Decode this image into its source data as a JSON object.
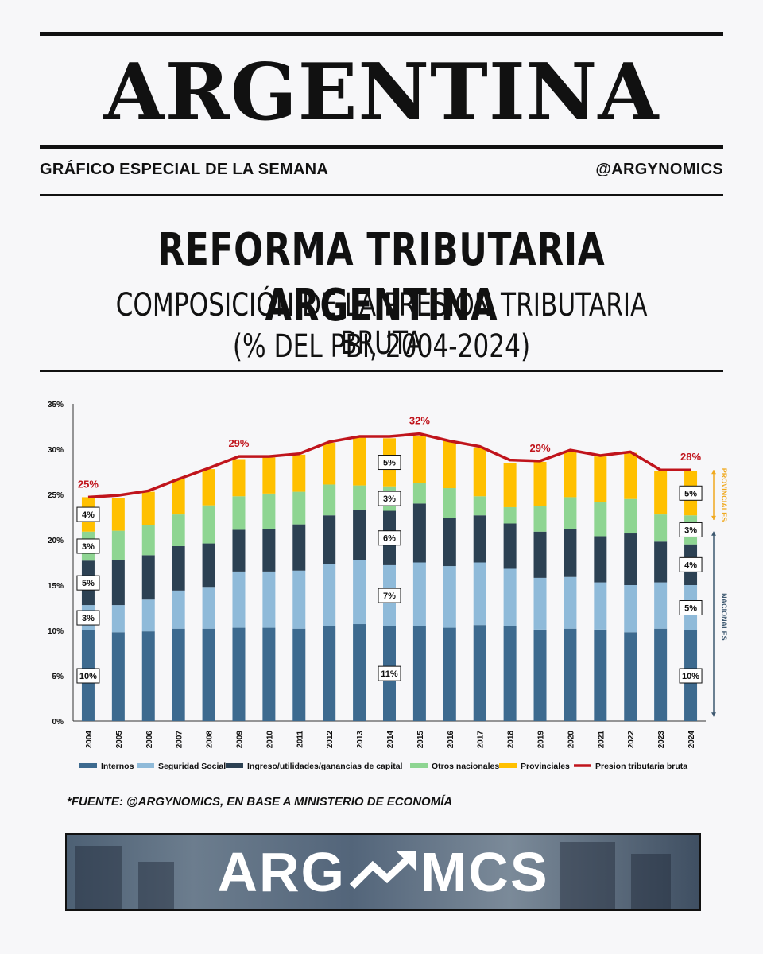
{
  "header": {
    "masthead": "ARGENTINA",
    "left_tag": "GRÁFICO ESPECIAL DE LA SEMANA",
    "right_tag": "@ARGYNOMICS"
  },
  "title": "REFORMA TRIBUTARIA ARGENTINA",
  "subtitle_line1": "COMPOSICIÓN DE LA PRESION TRIBUTARIA BRUTA",
  "subtitle_line2": "(% DEL PBI, 2004-2024)",
  "source": "*FUENTE: @ARGYNOMICS, EN BASE A MINISTERIO DE ECONOMÍA",
  "logo": {
    "left": "ARG",
    "right": "MCS",
    "icon": "trend-arrow-icon"
  },
  "chart_data": {
    "type": "bar",
    "stacked": true,
    "categories": [
      "2004",
      "2005",
      "2006",
      "2007",
      "2008",
      "2009",
      "2010",
      "2011",
      "2012",
      "2013",
      "2014",
      "2015",
      "2016",
      "2017",
      "2018",
      "2019",
      "2020",
      "2021",
      "2022",
      "2023",
      "2024"
    ],
    "ylim": [
      0,
      35
    ],
    "yticks": [
      "0%",
      "5%",
      "10%",
      "15%",
      "20%",
      "25%",
      "30%",
      "35%"
    ],
    "series": [
      {
        "name": "Internos",
        "color": "#3d6a8f",
        "values": [
          10.0,
          9.8,
          9.9,
          10.2,
          10.2,
          10.3,
          10.3,
          10.2,
          10.5,
          10.7,
          10.5,
          10.5,
          10.3,
          10.6,
          10.5,
          10.1,
          10.2,
          10.1,
          9.8,
          10.2,
          10.0
        ]
      },
      {
        "name": "Seguridad Social",
        "color": "#8fbad9",
        "values": [
          2.8,
          3.0,
          3.5,
          4.2,
          4.6,
          6.2,
          6.2,
          6.4,
          6.8,
          7.1,
          6.7,
          7.0,
          6.8,
          6.9,
          6.3,
          5.7,
          5.7,
          5.2,
          5.2,
          5.1,
          5.0
        ]
      },
      {
        "name": "Ingreso/utilidades/ganancias de capital",
        "color": "#2c4153",
        "values": [
          4.9,
          5.0,
          4.9,
          4.9,
          4.8,
          4.6,
          4.7,
          5.1,
          5.4,
          5.5,
          6.0,
          6.5,
          5.3,
          5.2,
          5.0,
          5.1,
          5.3,
          5.1,
          5.7,
          4.5,
          4.5
        ]
      },
      {
        "name": "Otros nacionales",
        "color": "#8ed592",
        "values": [
          3.2,
          3.2,
          3.3,
          3.5,
          4.2,
          3.7,
          3.9,
          3.6,
          3.4,
          2.7,
          2.7,
          2.3,
          3.3,
          2.1,
          1.8,
          2.8,
          3.5,
          3.8,
          3.8,
          3.0,
          3.2
        ]
      },
      {
        "name": "Provinciales",
        "color": "#ffc000",
        "values": [
          3.8,
          3.6,
          3.7,
          3.9,
          4.0,
          4.1,
          4.0,
          4.1,
          4.6,
          5.3,
          5.3,
          5.2,
          5.2,
          5.4,
          4.9,
          4.9,
          5.1,
          5.0,
          5.1,
          4.8,
          4.9
        ]
      }
    ],
    "line": {
      "name": "Presion tributaria bruta",
      "color": "#c0141c",
      "values": [
        24.7,
        24.9,
        25.4,
        26.7,
        27.9,
        29.2,
        29.2,
        29.5,
        30.8,
        31.4,
        31.4,
        31.7,
        30.9,
        30.3,
        28.8,
        28.7,
        29.9,
        29.3,
        29.7,
        27.7,
        27.7
      ]
    },
    "line_labels": [
      {
        "index": 0,
        "text": "25%"
      },
      {
        "index": 5,
        "text": "29%"
      },
      {
        "index": 11,
        "text": "32%"
      },
      {
        "index": 15,
        "text": "29%"
      },
      {
        "index": 20,
        "text": "28%"
      }
    ],
    "segment_labels": {
      "2004": [
        "10%",
        "3%",
        "5%",
        "3%",
        "4%"
      ],
      "2014": [
        "11%",
        "7%",
        "6%",
        "3%",
        "5%"
      ],
      "2024": [
        "10%",
        "5%",
        "4%",
        "3%",
        "5%"
      ]
    },
    "side_labels": [
      {
        "text": "PROVINCIALES",
        "color": "#f0a91f"
      },
      {
        "text": "NACIONALES",
        "color": "#3d5870"
      }
    ],
    "legend_position": "bottom"
  }
}
